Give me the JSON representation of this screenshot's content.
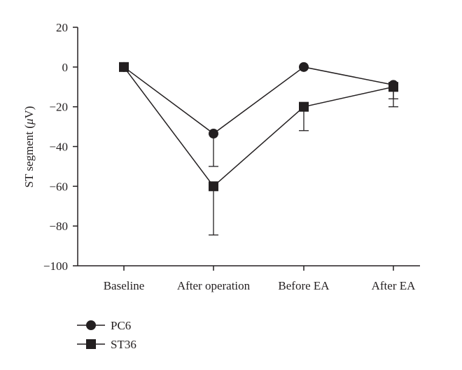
{
  "chart_data": {
    "type": "line",
    "categories": [
      "Baseline",
      "After operation",
      "Before EA",
      "After EA"
    ],
    "ylabel": "ST segment (",
    "ylabel_symbol": "μ",
    "ylabel_unit": "V)",
    "ylim": [
      -100,
      20
    ],
    "yticks": [
      "20",
      "0",
      "−20",
      "−40",
      "−60",
      "−80",
      "−100"
    ],
    "ytick_values": [
      20,
      0,
      -20,
      -40,
      -60,
      -80,
      -100
    ],
    "legend_position": "bottom-left",
    "series": [
      {
        "name": "PC6",
        "marker": "circle",
        "values": [
          0,
          -33.5,
          0,
          -9
        ],
        "error_bars": [
          null,
          16.5,
          null,
          7
        ]
      },
      {
        "name": "ST36",
        "marker": "square",
        "values": [
          0,
          -60,
          -20,
          -10
        ],
        "error_bars": [
          null,
          24.5,
          12,
          10
        ]
      }
    ],
    "colors": {
      "ink": "#231f20",
      "background": "#ffffff"
    }
  }
}
